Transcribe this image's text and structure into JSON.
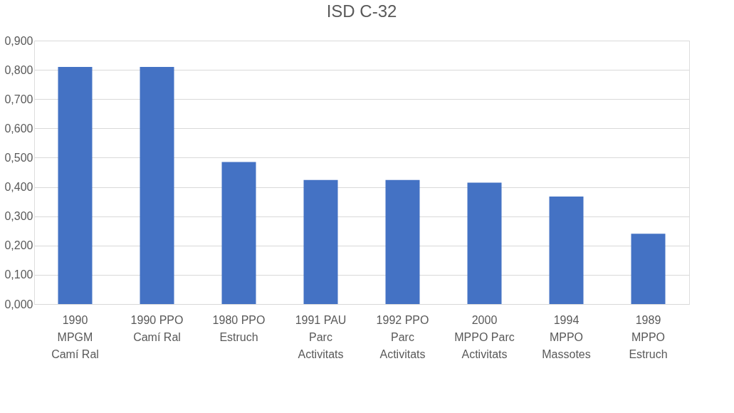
{
  "chart_data": {
    "type": "bar",
    "title": "ISD C-32",
    "categories": [
      "1990\nMPGM\nCamí Ral",
      "1990 PPO\nCamí Ral",
      "1980 PPO\nEstruch",
      "1991 PAU\nParc\nActivitats",
      "1992 PPO\nParc\nActivitats",
      "2000\nMPPO Parc\nActivitats",
      "1994\nMPPO\nMassotes",
      "1989\nMPPO\nEstruch"
    ],
    "series": [
      {
        "color": "#4472c4",
        "values": [
          0.81,
          0.81,
          0.485,
          0.424,
          0.424,
          0.415,
          0.367,
          0.24
        ]
      }
    ],
    "ylim": [
      0,
      0.9
    ],
    "yticks": [
      {
        "value": 0,
        "label": "0,000"
      },
      {
        "value": 0.1,
        "label": "0,100"
      },
      {
        "value": 0.2,
        "label": "0,200"
      },
      {
        "value": 0.3,
        "label": "0,300"
      },
      {
        "value": 0.4,
        "label": "0,400"
      },
      {
        "value": 0.5,
        "label": "0,500"
      },
      {
        "value": 0.6,
        "label": "0,600"
      },
      {
        "value": 0.7,
        "label": "0,700"
      },
      {
        "value": 0.8,
        "label": "0,800"
      },
      {
        "value": 0.9,
        "label": "0,900"
      }
    ],
    "grid": "y"
  }
}
